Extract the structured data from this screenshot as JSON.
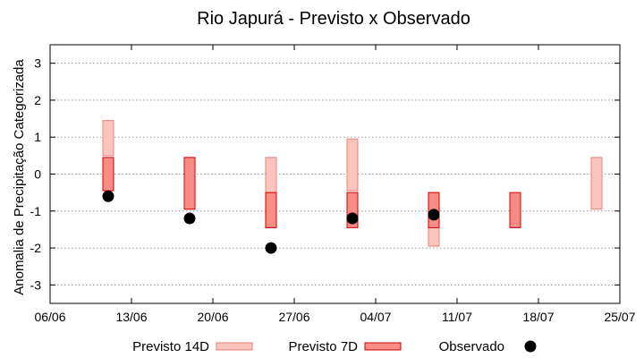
{
  "chart_data": {
    "type": "range-bar",
    "title": "Rio Japurá - Previsto x Observado",
    "xlabel": "",
    "ylabel": "Anomalia de Precipitação Categorizada",
    "ylim": [
      -3.5,
      3.5
    ],
    "yticks": [
      -3,
      -2,
      -1,
      0,
      1,
      2,
      3
    ],
    "xlim": [
      "2023-06-06",
      "2023-07-25"
    ],
    "xticks": [
      {
        "date": "2023-06-06",
        "label": "06/06"
      },
      {
        "date": "2023-06-13",
        "label": "13/06"
      },
      {
        "date": "2023-06-20",
        "label": "20/06"
      },
      {
        "date": "2023-06-27",
        "label": "27/06"
      },
      {
        "date": "2023-07-04",
        "label": "04/07"
      },
      {
        "date": "2023-07-11",
        "label": "11/07"
      },
      {
        "date": "2023-07-18",
        "label": "18/07"
      },
      {
        "date": "2023-07-25",
        "label": "25/07"
      }
    ],
    "grid": "horizontal dotted",
    "legend_position": "bottom",
    "colors": {
      "previsto_14d_fill": "#fbc4bc",
      "previsto_14d_stroke": "#e8837a",
      "previsto_7d_fill": "#fa8c86",
      "previsto_7d_stroke": "#cc0000",
      "observado": "#000000",
      "grid": "#999999"
    },
    "series": [
      {
        "name": "Previsto 14D",
        "kind": "range",
        "data": [
          {
            "x": "2023-06-11",
            "low": 0.5,
            "high": 1.45
          },
          {
            "x": "2023-06-18",
            "low": -0.95,
            "high": 0.45
          },
          {
            "x": "2023-06-25",
            "low": -1.45,
            "high": 0.45
          },
          {
            "x": "2023-07-02",
            "low": -0.45,
            "high": 0.95
          },
          {
            "x": "2023-07-09",
            "low": -1.95,
            "high": -0.5
          },
          {
            "x": "2023-07-23",
            "low": -0.95,
            "high": 0.45
          }
        ]
      },
      {
        "name": "Previsto 7D",
        "kind": "range",
        "data": [
          {
            "x": "2023-06-11",
            "low": -0.45,
            "high": 0.45
          },
          {
            "x": "2023-06-18",
            "low": -0.95,
            "high": 0.45
          },
          {
            "x": "2023-06-25",
            "low": -1.45,
            "high": -0.5
          },
          {
            "x": "2023-07-02",
            "low": -1.45,
            "high": -0.5
          },
          {
            "x": "2023-07-09",
            "low": -1.45,
            "high": -0.5
          },
          {
            "x": "2023-07-16",
            "low": -1.45,
            "high": -0.5
          }
        ]
      },
      {
        "name": "Observado",
        "kind": "point",
        "data": [
          {
            "x": "2023-06-11",
            "y": -0.6
          },
          {
            "x": "2023-06-18",
            "y": -1.2
          },
          {
            "x": "2023-06-25",
            "y": -2.0
          },
          {
            "x": "2023-07-02",
            "y": -1.2
          },
          {
            "x": "2023-07-09",
            "y": -1.1
          }
        ]
      }
    ]
  }
}
